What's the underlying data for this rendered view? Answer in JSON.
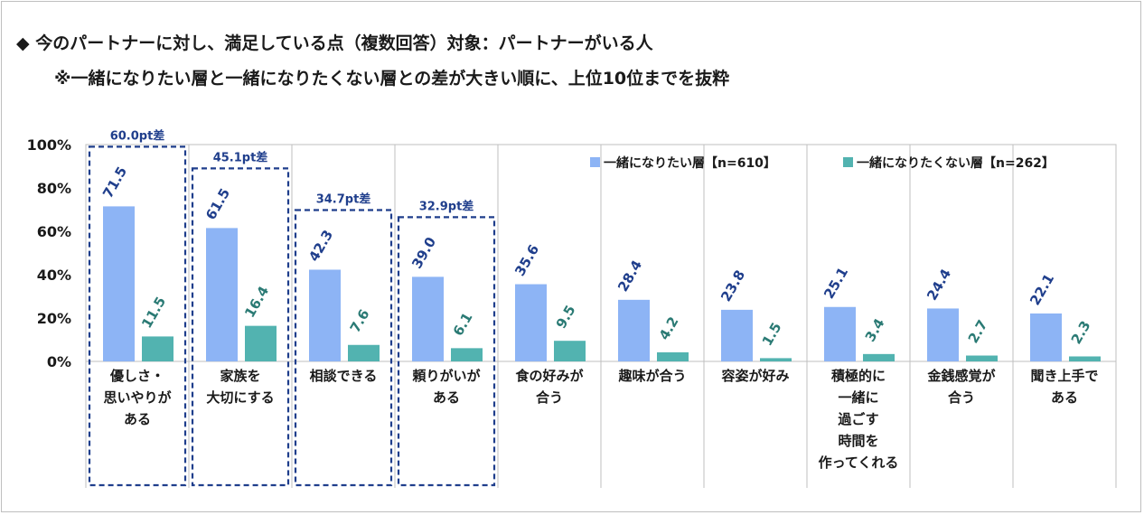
{
  "header": {
    "title": "◆ 今のパートナーに対し、満足している点（複数回答）対象：パートナーがいる人",
    "subtitle": "※一緒になりたい層と一緒になりたくない層との差が大きい順に、上位10位までを抜粋"
  },
  "chart_data": {
    "type": "bar",
    "title": "今のパートナーに対し、満足している点（複数回答）対象：パートナーがいる人",
    "subtitle": "※一緒になりたい層と一緒になりたくない層との差が大きい順に、上位10位までを抜粋",
    "ylim": [
      0,
      100
    ],
    "y_ticks": [
      "0%",
      "20%",
      "40%",
      "60%",
      "80%",
      "100%"
    ],
    "categories": [
      [
        "優しさ・",
        "思いやりが",
        "ある"
      ],
      [
        "家族を",
        "大切にする"
      ],
      [
        "相談できる"
      ],
      [
        "頼りがいが",
        "ある"
      ],
      [
        "食の好みが",
        "合う"
      ],
      [
        "趣味が合う"
      ],
      [
        "容姿が好み"
      ],
      [
        "積極的に",
        "一緒に",
        "過ごす",
        "時間を",
        "作ってくれる"
      ],
      [
        "金銭感覚が",
        "合う"
      ],
      [
        "聞き上手で",
        "ある"
      ]
    ],
    "series": [
      {
        "name": "一緒になりたい層【n=610】",
        "color": "#8db4f5",
        "label_color": "#1f3e8c",
        "values": [
          71.5,
          61.5,
          42.3,
          39.0,
          35.6,
          28.4,
          23.8,
          25.1,
          24.4,
          22.1
        ],
        "labels": [
          "71.5",
          "61.5",
          "42.3",
          "39.0",
          "35.6",
          "28.4",
          "23.8",
          "25.1",
          "24.4",
          "22.1"
        ]
      },
      {
        "name": "一緒になりたくない層【n=262】",
        "color": "#52b3b0",
        "label_color": "#2a7a74",
        "values": [
          11.5,
          16.4,
          7.6,
          6.1,
          9.5,
          4.2,
          1.5,
          3.4,
          2.7,
          2.3
        ],
        "labels": [
          "11.5",
          "16.4",
          "7.6",
          "6.1",
          "9.5",
          "4.2",
          "1.5",
          "3.4",
          "2.7",
          "2.3"
        ]
      }
    ],
    "differences": [
      "60.0pt差",
      "45.1pt差",
      "34.7pt差",
      "32.9pt差"
    ],
    "highlight_color": "#1f3e8c",
    "legend_position": "top-right",
    "grid": false
  }
}
